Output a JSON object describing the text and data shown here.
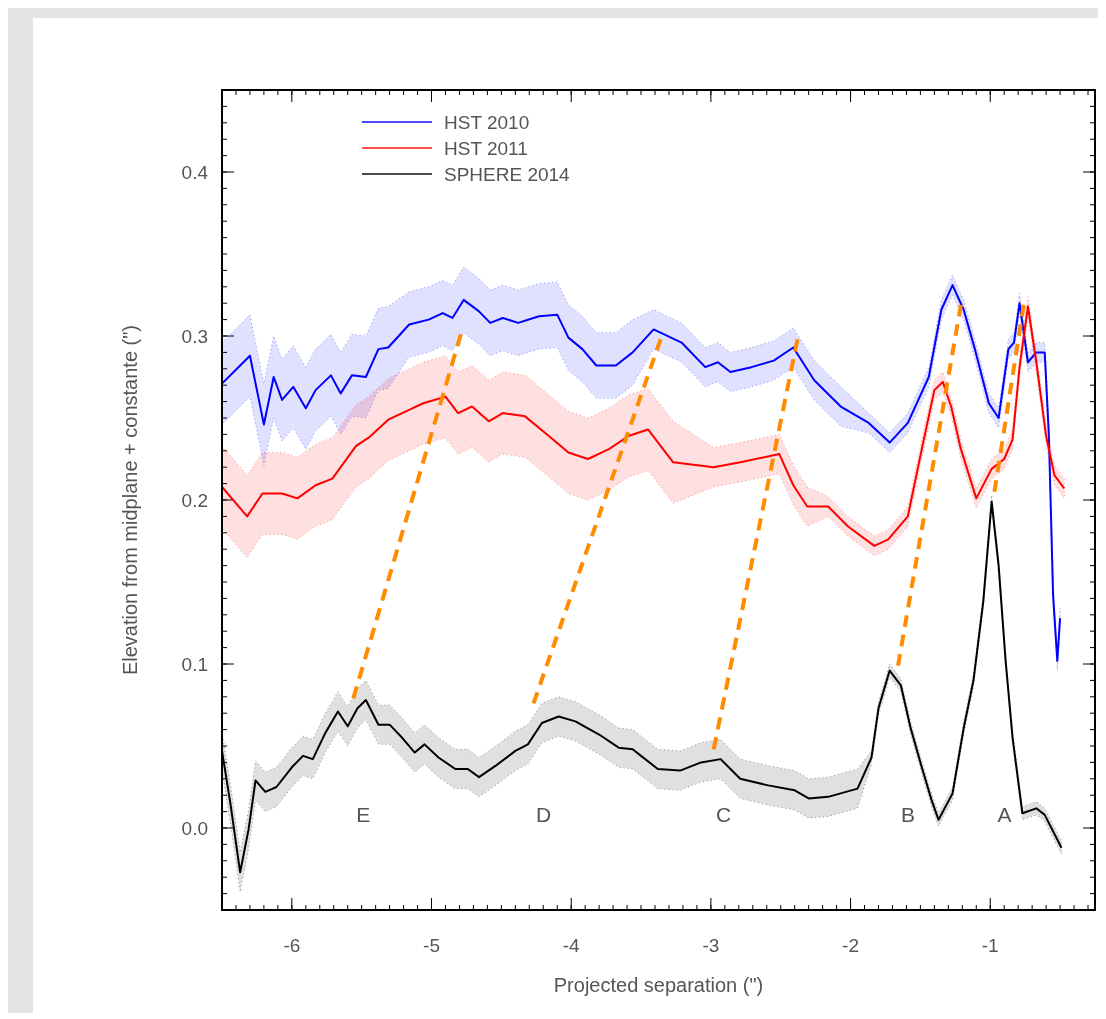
{
  "chart_data": {
    "type": "line",
    "xlabel": "Projected separation (\")",
    "ylabel": "Elevation from midplane + constante (\")",
    "xlim": [
      -6.5,
      -0.25
    ],
    "ylim": [
      -0.05,
      0.45
    ],
    "xticks": [
      -6,
      -5,
      -4,
      -3,
      -2,
      -1
    ],
    "yticks": [
      {
        "value": 0,
        "label": "0.0"
      },
      0.1,
      0.2,
      0.3,
      0.4
    ],
    "legend": "top left",
    "grid": false,
    "line_style": "solid",
    "marker": "none",
    "series": [
      {
        "name": "HST 2010",
        "color": "#0000ff",
        "x": [
          -6.5,
          -6.3,
          -6.2,
          -6.13,
          -6.07,
          -5.99,
          -5.9,
          -5.83,
          -5.72,
          -5.65,
          -5.57,
          -5.47,
          -5.38,
          -5.31,
          -5.16,
          -5.02,
          -4.92,
          -4.85,
          -4.77,
          -4.66,
          -4.58,
          -4.49,
          -4.38,
          -4.23,
          -4.1,
          -4.02,
          -3.92,
          -3.82,
          -3.68,
          -3.56,
          -3.41,
          -3.21,
          -3.04,
          -2.95,
          -2.86,
          -2.71,
          -2.55,
          -2.41,
          -2.26,
          -2.07,
          -1.87,
          -1.72,
          -1.59,
          -1.44,
          -1.35,
          -1.27,
          -1.19,
          -1.11,
          -1.01,
          -0.94,
          -0.87,
          -0.83,
          -0.79,
          -0.73,
          -0.67,
          -0.61,
          -0.58,
          -0.55,
          -0.52,
          -0.5
        ],
        "values": [
          0.271,
          0.288,
          0.246,
          0.275,
          0.261,
          0.269,
          0.256,
          0.267,
          0.276,
          0.265,
          0.276,
          0.275,
          0.292,
          0.293,
          0.307,
          0.31,
          0.314,
          0.311,
          0.322,
          0.315,
          0.308,
          0.311,
          0.308,
          0.312,
          0.313,
          0.299,
          0.292,
          0.282,
          0.282,
          0.29,
          0.304,
          0.296,
          0.281,
          0.284,
          0.278,
          0.281,
          0.285,
          0.293,
          0.273,
          0.257,
          0.247,
          0.235,
          0.247,
          0.275,
          0.316,
          0.331,
          0.316,
          0.292,
          0.259,
          0.25,
          0.292,
          0.296,
          0.32,
          0.284,
          0.29,
          0.29,
          0.239,
          0.142,
          0.102,
          0.128
        ],
        "lower": [
          0.246,
          0.263,
          0.221,
          0.25,
          0.236,
          0.244,
          0.231,
          0.242,
          0.251,
          0.24,
          0.251,
          0.25,
          0.267,
          0.268,
          0.287,
          0.29,
          0.294,
          0.291,
          0.302,
          0.295,
          0.288,
          0.291,
          0.288,
          0.292,
          0.293,
          0.279,
          0.272,
          0.262,
          0.262,
          0.27,
          0.292,
          0.284,
          0.269,
          0.272,
          0.266,
          0.269,
          0.273,
          0.281,
          0.261,
          0.245,
          0.241,
          0.229,
          0.241,
          0.269,
          0.31,
          0.325,
          0.31,
          0.286,
          0.253,
          0.244,
          0.286,
          0.29,
          0.314,
          0.278,
          0.284,
          0.284,
          0.233,
          0.136,
          0.096,
          0.122
        ],
        "upper": [
          0.296,
          0.313,
          0.271,
          0.3,
          0.286,
          0.294,
          0.281,
          0.292,
          0.301,
          0.29,
          0.301,
          0.3,
          0.317,
          0.318,
          0.327,
          0.33,
          0.334,
          0.331,
          0.342,
          0.335,
          0.328,
          0.331,
          0.328,
          0.332,
          0.333,
          0.319,
          0.312,
          0.302,
          0.302,
          0.31,
          0.316,
          0.308,
          0.293,
          0.296,
          0.29,
          0.293,
          0.297,
          0.305,
          0.285,
          0.269,
          0.253,
          0.241,
          0.253,
          0.281,
          0.322,
          0.337,
          0.322,
          0.298,
          0.265,
          0.256,
          0.298,
          0.302,
          0.326,
          0.29,
          0.296,
          0.296,
          0.245,
          0.148,
          0.108,
          0.134
        ]
      },
      {
        "name": "HST 2011",
        "color": "#ff0000",
        "x": [
          -6.5,
          -6.32,
          -6.21,
          -6.07,
          -5.96,
          -5.83,
          -5.71,
          -5.54,
          -5.45,
          -5.31,
          -5.16,
          -5.06,
          -4.9,
          -4.81,
          -4.71,
          -4.59,
          -4.49,
          -4.33,
          -4.16,
          -4.02,
          -3.88,
          -3.73,
          -3.59,
          -3.45,
          -3.27,
          -2.98,
          -2.79,
          -2.51,
          -2.41,
          -2.31,
          -2.16,
          -2.02,
          -1.83,
          -1.73,
          -1.59,
          -1.49,
          -1.4,
          -1.34,
          -1.28,
          -1.21,
          -1.1,
          -0.99,
          -0.9,
          -0.84,
          -0.79,
          -0.73,
          -0.67,
          -0.6,
          -0.54,
          -0.47
        ],
        "values": [
          0.208,
          0.19,
          0.204,
          0.204,
          0.201,
          0.209,
          0.213,
          0.233,
          0.238,
          0.249,
          0.255,
          0.259,
          0.263,
          0.253,
          0.257,
          0.248,
          0.253,
          0.251,
          0.239,
          0.229,
          0.225,
          0.231,
          0.239,
          0.243,
          0.223,
          0.22,
          0.223,
          0.228,
          0.209,
          0.196,
          0.196,
          0.184,
          0.172,
          0.176,
          0.19,
          0.231,
          0.267,
          0.272,
          0.257,
          0.231,
          0.201,
          0.219,
          0.225,
          0.237,
          0.281,
          0.318,
          0.284,
          0.239,
          0.215,
          0.207
        ],
        "lower": [
          0.183,
          0.165,
          0.179,
          0.179,
          0.176,
          0.184,
          0.188,
          0.208,
          0.213,
          0.224,
          0.23,
          0.234,
          0.238,
          0.228,
          0.232,
          0.223,
          0.228,
          0.226,
          0.214,
          0.204,
          0.2,
          0.206,
          0.214,
          0.218,
          0.198,
          0.208,
          0.211,
          0.216,
          0.197,
          0.184,
          0.19,
          0.178,
          0.166,
          0.17,
          0.184,
          0.225,
          0.261,
          0.266,
          0.251,
          0.225,
          0.195,
          0.213,
          0.219,
          0.231,
          0.275,
          0.312,
          0.278,
          0.233,
          0.209,
          0.201
        ],
        "upper": [
          0.233,
          0.215,
          0.229,
          0.229,
          0.226,
          0.234,
          0.238,
          0.258,
          0.263,
          0.274,
          0.28,
          0.284,
          0.288,
          0.278,
          0.282,
          0.273,
          0.278,
          0.276,
          0.264,
          0.254,
          0.25,
          0.256,
          0.264,
          0.268,
          0.248,
          0.232,
          0.235,
          0.24,
          0.221,
          0.208,
          0.202,
          0.19,
          0.178,
          0.182,
          0.196,
          0.237,
          0.273,
          0.278,
          0.263,
          0.237,
          0.207,
          0.225,
          0.231,
          0.243,
          0.287,
          0.324,
          0.29,
          0.245,
          0.221,
          0.213
        ]
      },
      {
        "name": "SPHERE 2014",
        "color": "#000000",
        "x": [
          -6.5,
          -6.44,
          -6.37,
          -6.31,
          -6.26,
          -6.19,
          -6.11,
          -6.0,
          -5.92,
          -5.85,
          -5.76,
          -5.67,
          -5.6,
          -5.53,
          -5.47,
          -5.38,
          -5.3,
          -5.21,
          -5.12,
          -5.05,
          -4.95,
          -4.83,
          -4.74,
          -4.66,
          -4.54,
          -4.4,
          -4.31,
          -4.21,
          -4.09,
          -3.97,
          -3.8,
          -3.66,
          -3.56,
          -3.5,
          -3.38,
          -3.22,
          -3.07,
          -2.93,
          -2.79,
          -2.59,
          -2.4,
          -2.3,
          -2.16,
          -1.95,
          -1.85,
          -1.8,
          -1.72,
          -1.64,
          -1.57,
          -1.49,
          -1.42,
          -1.37,
          -1.27,
          -1.19,
          -1.12,
          -1.05,
          -0.99,
          -0.94,
          -0.89,
          -0.84,
          -0.77,
          -0.67,
          -0.61,
          -0.49
        ],
        "values": [
          0.047,
          0.015,
          -0.027,
          -0.001,
          0.029,
          0.022,
          0.025,
          0.037,
          0.044,
          0.042,
          0.058,
          0.071,
          0.062,
          0.073,
          0.078,
          0.063,
          0.063,
          0.055,
          0.046,
          0.051,
          0.043,
          0.036,
          0.036,
          0.031,
          0.038,
          0.047,
          0.051,
          0.064,
          0.068,
          0.065,
          0.057,
          0.049,
          0.048,
          0.044,
          0.036,
          0.035,
          0.04,
          0.042,
          0.03,
          0.026,
          0.023,
          0.018,
          0.019,
          0.024,
          0.043,
          0.073,
          0.096,
          0.087,
          0.061,
          0.037,
          0.017,
          0.005,
          0.021,
          0.061,
          0.09,
          0.138,
          0.199,
          0.16,
          0.102,
          0.055,
          0.009,
          0.012,
          0.008,
          -0.012
        ],
        "lower": [
          0.035,
          0.003,
          -0.039,
          -0.013,
          0.017,
          0.01,
          0.013,
          0.025,
          0.032,
          0.03,
          0.046,
          0.059,
          0.05,
          0.061,
          0.066,
          0.051,
          0.051,
          0.043,
          0.034,
          0.039,
          0.031,
          0.024,
          0.024,
          0.019,
          0.026,
          0.035,
          0.039,
          0.052,
          0.056,
          0.053,
          0.045,
          0.037,
          0.036,
          0.032,
          0.024,
          0.023,
          0.028,
          0.03,
          0.018,
          0.014,
          0.011,
          0.006,
          0.007,
          0.012,
          0.039,
          0.069,
          0.092,
          0.083,
          0.057,
          0.033,
          0.013,
          0.001,
          0.017,
          0.057,
          0.086,
          0.134,
          0.195,
          0.156,
          0.098,
          0.051,
          0.005,
          0.008,
          0.004,
          -0.016
        ],
        "upper": [
          0.059,
          0.027,
          -0.015,
          0.011,
          0.041,
          0.034,
          0.037,
          0.049,
          0.056,
          0.054,
          0.07,
          0.083,
          0.074,
          0.085,
          0.09,
          0.075,
          0.075,
          0.067,
          0.058,
          0.063,
          0.055,
          0.048,
          0.048,
          0.043,
          0.05,
          0.059,
          0.063,
          0.076,
          0.08,
          0.077,
          0.069,
          0.061,
          0.06,
          0.056,
          0.048,
          0.047,
          0.052,
          0.054,
          0.042,
          0.038,
          0.035,
          0.03,
          0.031,
          0.036,
          0.047,
          0.077,
          0.1,
          0.091,
          0.065,
          0.041,
          0.021,
          0.009,
          0.025,
          0.065,
          0.094,
          0.142,
          0.203,
          0.164,
          0.106,
          0.059,
          0.013,
          0.016,
          0.012,
          -0.008
        ]
      },
      {
        "color": "#ff8c00",
        "line_style": "dashed",
        "x": [
          -5.56,
          -4.79
        ],
        "values": [
          0.079,
          0.301
        ]
      },
      {
        "color": "#ff8c00",
        "line_style": "dashed",
        "x": [
          -4.27,
          -3.36
        ],
        "values": [
          0.076,
          0.298
        ]
      },
      {
        "color": "#ff8c00",
        "line_style": "dashed",
        "x": [
          -2.98,
          -2.38
        ],
        "values": [
          0.048,
          0.298
        ]
      },
      {
        "color": "#ff8c00",
        "line_style": "dashed",
        "x": [
          -1.66,
          -1.21
        ],
        "values": [
          0.099,
          0.319
        ]
      },
      {
        "color": "#ff8c00",
        "line_style": "dashed",
        "x": [
          -0.97,
          -0.76
        ],
        "values": [
          0.205,
          0.319
        ]
      }
    ],
    "annotations": [
      "E",
      "D",
      "C",
      "B",
      "A"
    ]
  }
}
